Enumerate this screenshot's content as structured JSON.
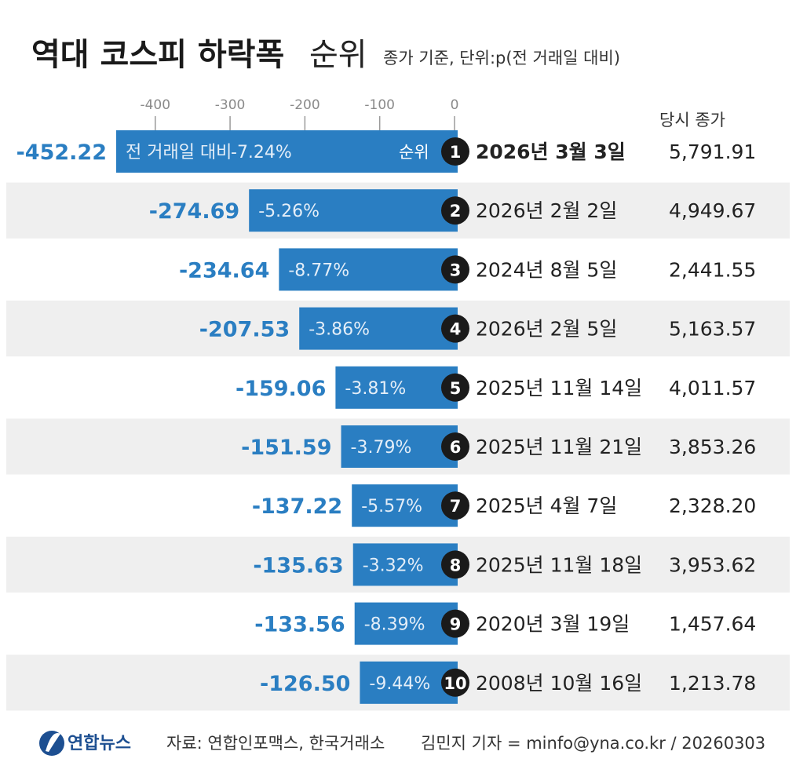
{
  "header": {
    "title_bold": "역대 코스피 하락폭",
    "title_light": "순위",
    "subtitle": "종가 기준, 단위:p(전 거래일 대비)"
  },
  "chart_data": {
    "type": "bar",
    "orientation": "horizontal",
    "xlim": [
      -452.22,
      0
    ],
    "x_ticks": [
      -400,
      -300,
      -200,
      -100,
      0
    ],
    "bar_color": "#2a7ec2",
    "stripe_color": "#efefef",
    "pct_header": "전 거래일 대비",
    "rank_header": "순위",
    "close_header": "당시 종가",
    "rows": [
      {
        "rank": 1,
        "value": -452.22,
        "label": "-452.22",
        "pct": "-7.24%",
        "date": "2026년 3월 3일",
        "close": "5,791.91"
      },
      {
        "rank": 2,
        "value": -274.69,
        "label": "-274.69",
        "pct": "-5.26%",
        "date": "2026년 2월 2일",
        "close": "4,949.67"
      },
      {
        "rank": 3,
        "value": -234.64,
        "label": "-234.64",
        "pct": "-8.77%",
        "date": "2024년 8월 5일",
        "close": "2,441.55"
      },
      {
        "rank": 4,
        "value": -207.53,
        "label": "-207.53",
        "pct": "-3.86%",
        "date": "2026년 2월 5일",
        "close": "5,163.57"
      },
      {
        "rank": 5,
        "value": -159.06,
        "label": "-159.06",
        "pct": "-3.81%",
        "date": "2025년 11월 14일",
        "close": "4,011.57"
      },
      {
        "rank": 6,
        "value": -151.59,
        "label": "-151.59",
        "pct": "-3.79%",
        "date": "2025년 11월 21일",
        "close": "3,853.26"
      },
      {
        "rank": 7,
        "value": -137.22,
        "label": "-137.22",
        "pct": "-5.57%",
        "date": "2025년 4월 7일",
        "close": "2,328.20"
      },
      {
        "rank": 8,
        "value": -135.63,
        "label": "-135.63",
        "pct": "-3.32%",
        "date": "2025년 11월 18일",
        "close": "3,953.62"
      },
      {
        "rank": 9,
        "value": -133.56,
        "label": "-133.56",
        "pct": "-8.39%",
        "date": "2020년 3월 19일",
        "close": "1,457.64"
      },
      {
        "rank": 10,
        "value": -126.5,
        "label": "-126.50",
        "pct": "-9.44%",
        "date": "2008년 10월 16일",
        "close": "1,213.78"
      }
    ]
  },
  "footer": {
    "brand": "연합뉴스",
    "source": "자료: 연합인포맥스, 한국거래소",
    "credit": "김민지 기자 = minfo@yna.co.kr / 20260303"
  }
}
